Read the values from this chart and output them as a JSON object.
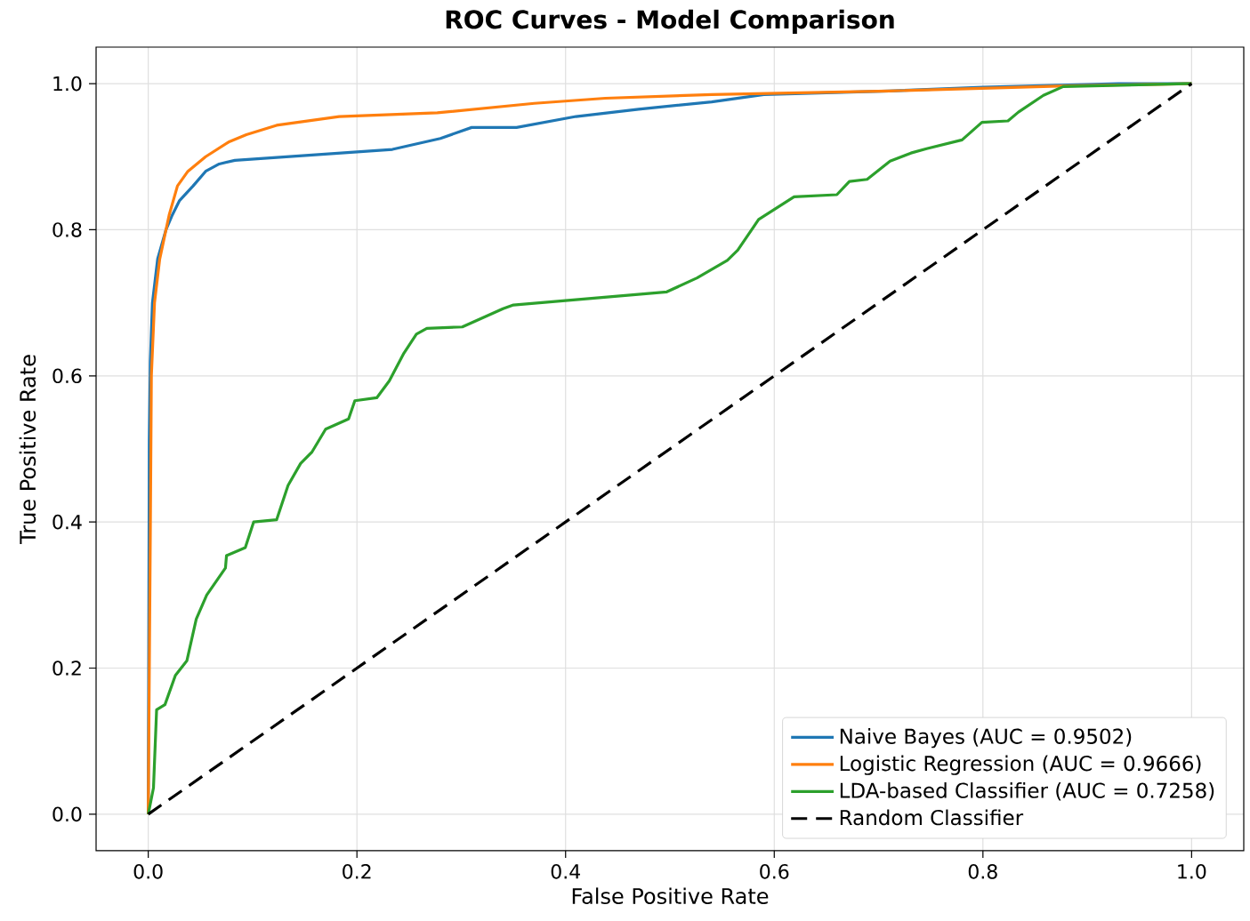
{
  "chart_data": {
    "type": "line",
    "title": "ROC Curves - Model Comparison",
    "xlabel": "False Positive Rate",
    "ylabel": "True Positive Rate",
    "xlim": [
      -0.05,
      1.05
    ],
    "ylim": [
      -0.05,
      1.05
    ],
    "xticks": [
      {
        "value": 0,
        "label": "0.0"
      },
      0.2,
      0.4,
      0.6,
      0.8,
      {
        "value": 1,
        "label": "1.0"
      }
    ],
    "yticks": [
      {
        "value": 0,
        "label": "0.0"
      },
      0.2,
      0.4,
      0.6,
      0.8,
      {
        "value": 1,
        "label": "1.0"
      }
    ],
    "grid": true,
    "legend": "bottom right",
    "series": [
      {
        "name": "Naive Bayes (AUC = 0.9502)",
        "color": "#1f77b4",
        "line_style": "solid",
        "x": [
          0,
          0.001,
          0.002,
          0.004,
          0.009,
          0.017,
          0.023,
          0.03,
          0.043,
          0.055,
          0.068,
          0.083,
          0.234,
          0.28,
          0.31,
          0.353,
          0.41,
          0.47,
          0.54,
          0.59,
          0.71,
          0.8,
          0.93,
          1
        ],
        "values": [
          0,
          0.51,
          0.62,
          0.7,
          0.76,
          0.8,
          0.82,
          0.84,
          0.86,
          0.88,
          0.89,
          0.895,
          0.91,
          0.925,
          0.94,
          0.94,
          0.955,
          0.965,
          0.975,
          0.985,
          0.99,
          0.995,
          1,
          1
        ]
      },
      {
        "name": "Logistic Regression (AUC = 0.9666)",
        "color": "#ff7f0e",
        "line_style": "solid",
        "x": [
          0,
          0.002,
          0.003,
          0.006,
          0.011,
          0.02,
          0.028,
          0.038,
          0.055,
          0.077,
          0.094,
          0.123,
          0.183,
          0.277,
          0.37,
          0.438,
          0.54,
          0.71,
          0.88,
          1
        ],
        "values": [
          0,
          0.385,
          0.6,
          0.7,
          0.76,
          0.82,
          0.86,
          0.88,
          0.9,
          0.92,
          0.93,
          0.943,
          0.955,
          0.96,
          0.973,
          0.98,
          0.985,
          0.99,
          0.997,
          1
        ]
      },
      {
        "name": "LDA-based Classifier (AUC = 0.7258)",
        "color": "#2ca02c",
        "line_style": "solid",
        "x": [
          0,
          0.005,
          0.008,
          0.016,
          0.026,
          0.037,
          0.046,
          0.056,
          0.074,
          0.075,
          0.093,
          0.101,
          0.123,
          0.134,
          0.146,
          0.157,
          0.17,
          0.192,
          0.198,
          0.219,
          0.231,
          0.245,
          0.257,
          0.267,
          0.301,
          0.34,
          0.35,
          0.497,
          0.526,
          0.555,
          0.565,
          0.585,
          0.619,
          0.66,
          0.672,
          0.689,
          0.711,
          0.731,
          0.746,
          0.78,
          0.799,
          0.824,
          0.834,
          0.858,
          0.877,
          0.995,
          1
        ],
        "values": [
          0,
          0.036,
          0.143,
          0.15,
          0.19,
          0.21,
          0.267,
          0.3,
          0.337,
          0.354,
          0.365,
          0.4,
          0.403,
          0.45,
          0.48,
          0.496,
          0.527,
          0.541,
          0.566,
          0.57,
          0.593,
          0.631,
          0.657,
          0.665,
          0.667,
          0.692,
          0.697,
          0.715,
          0.734,
          0.758,
          0.772,
          0.814,
          0.845,
          0.848,
          0.866,
          0.869,
          0.894,
          0.905,
          0.911,
          0.923,
          0.947,
          0.949,
          0.961,
          0.984,
          0.996,
          1,
          1
        ]
      },
      {
        "name": "Random Classifier",
        "color": "#000000",
        "line_style": "dashed",
        "x": [
          0,
          1
        ],
        "values": [
          0,
          1
        ]
      }
    ]
  }
}
